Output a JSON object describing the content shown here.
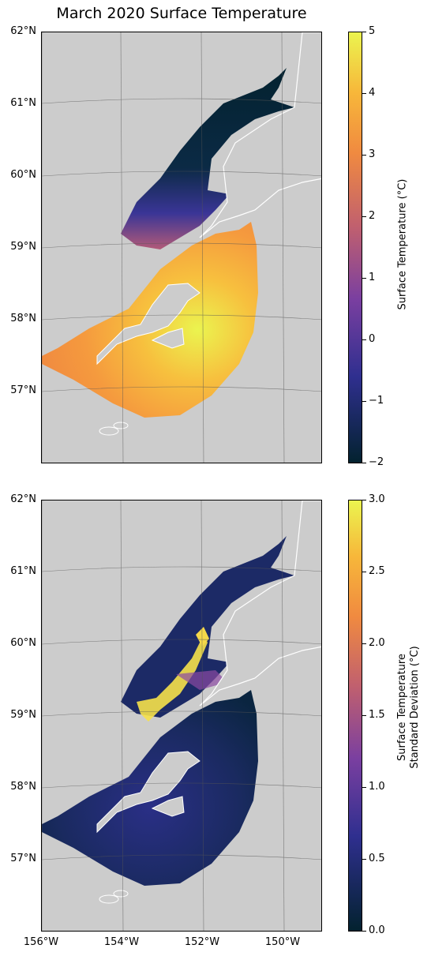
{
  "title": "March 2020 Surface Temperature",
  "lat_labels": [
    "62°N",
    "61°N",
    "60°N",
    "59°N",
    "58°N",
    "57°N"
  ],
  "lon_labels": [
    "156°W",
    "154°W",
    "152°W",
    "150°W"
  ],
  "panels": [
    {
      "name": "surface-temperature",
      "colorbar": {
        "label": "Surface Temperature (°C)",
        "label_line2": "",
        "ticks": [
          "5",
          "4",
          "3",
          "2",
          "1",
          "0",
          "−1",
          "−2"
        ],
        "min": -2,
        "max": 5
      }
    },
    {
      "name": "surface-temperature-std",
      "colorbar": {
        "label": "Surface Temperature",
        "label_line2": "Standard Deviation (°C)",
        "ticks": [
          "3.0",
          "2.5",
          "2.0",
          "1.5",
          "1.0",
          "0.5",
          "0.0"
        ],
        "min": 0,
        "max": 3
      }
    }
  ],
  "colormap": [
    "#03222f",
    "#2f2f8f",
    "#7a3fa0",
    "#c1606e",
    "#f08a40",
    "#f7b73a",
    "#ebf44f"
  ],
  "land_color": "#cccccc"
}
